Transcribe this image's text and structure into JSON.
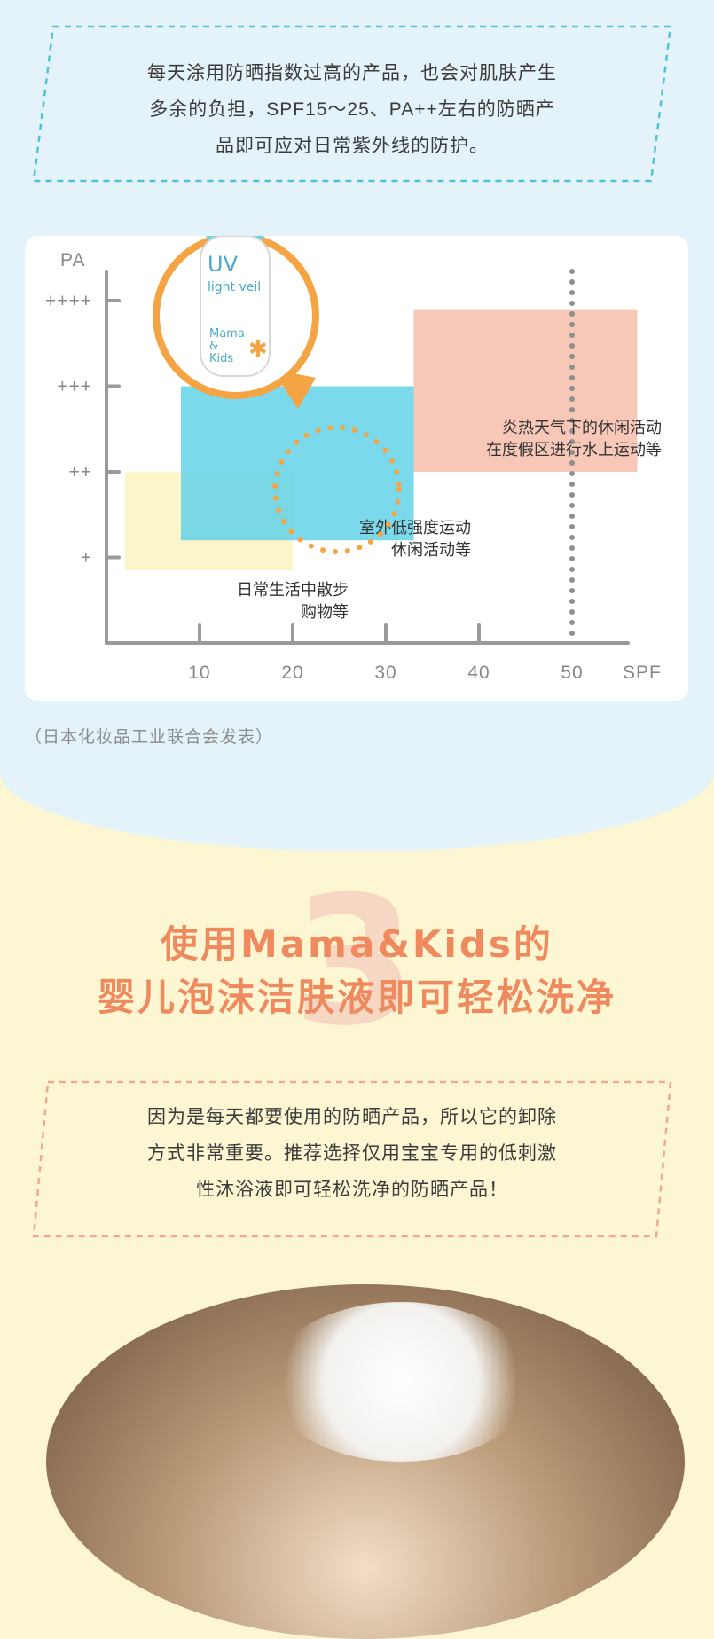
{
  "notes": {
    "top": {
      "lines": [
        "每天涂用防晒指数过高的产品，也会对肌肤产生",
        "多余的负担，SPF15～25、PA++左右的防晒产",
        "品即可应对日常紫外线的防护。"
      ],
      "border_color": "#4ec3d8"
    },
    "bottom": {
      "lines": [
        "因为是每天都要使用的防晒产品，所以它的卸除",
        "方式非常重要。推荐选择仅用宝宝专用的低刺激",
        "性沐浴液即可轻松洗净的防晒产品！"
      ],
      "border_color": "#f0a890"
    }
  },
  "chart_data": {
    "type": "area",
    "x_axis_label": "SPF",
    "y_axis_label": "PA",
    "x_ticks": [
      "10",
      "20",
      "30",
      "40",
      "50"
    ],
    "y_ticks": [
      "+",
      "++",
      "+++",
      "++++"
    ],
    "xlim": [
      0,
      50
    ],
    "ylim": [
      0,
      4
    ],
    "max_marker_spf": 50,
    "regions": [
      {
        "annotation": [
          "日常生活中散步",
          "购物等"
        ],
        "spf": [
          2,
          20
        ],
        "pa": [
          0.85,
          2.0
        ],
        "color": "#fbf5c9"
      },
      {
        "annotation": [
          "室外低强度运动",
          "休闲活动等"
        ],
        "spf": [
          8,
          33
        ],
        "pa": [
          1.2,
          3.0
        ],
        "color": "#6cd5e8"
      },
      {
        "annotation": [
          "炎热天气下的休闲活动",
          "在度假区进行水上运动等"
        ],
        "spf": [
          33,
          57
        ],
        "pa": [
          2.0,
          3.9
        ],
        "color": "#f7c7b8"
      }
    ],
    "product_position": {
      "spf": 20,
      "pa": 2
    }
  },
  "product": {
    "label_lines": [
      "UV",
      "light veil",
      "Mama",
      "&",
      "Kids"
    ],
    "callout_color": "#f5a443"
  },
  "source": "（日本化妆品工业联合会发表）",
  "section3": {
    "number": "3",
    "title_lines": [
      "使用Mama&Kids的",
      "婴儿泡沫洁肤液即可轻松洗净"
    ],
    "title_color": "#ef8a5f"
  }
}
